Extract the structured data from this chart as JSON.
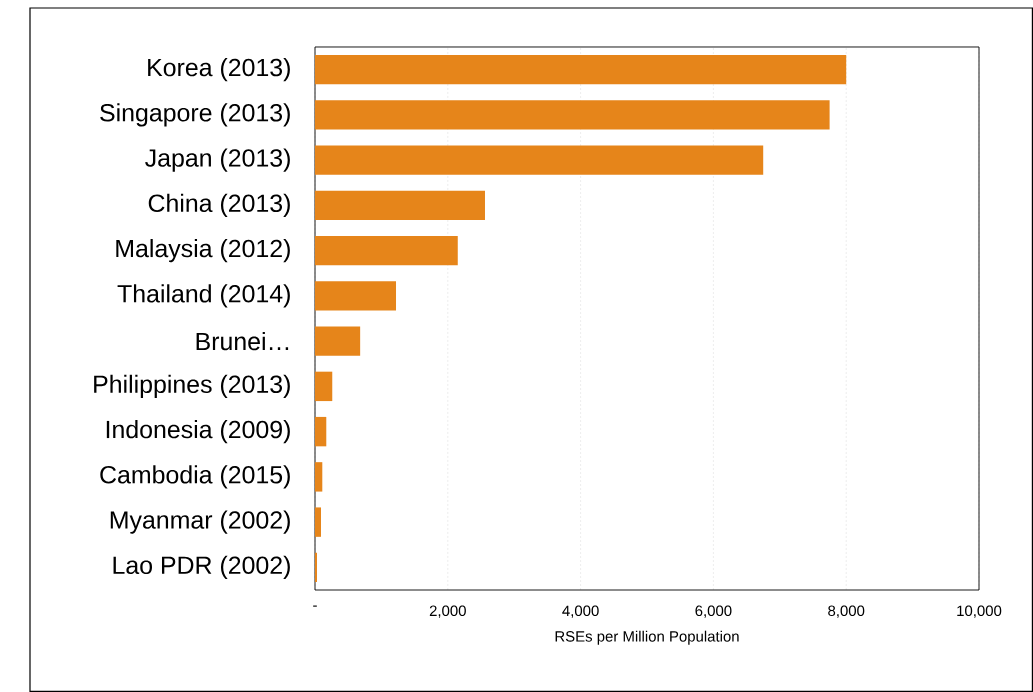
{
  "chart_data": {
    "type": "bar",
    "orientation": "horizontal",
    "xlabel": "RSEs per Million Population",
    "categories": [
      "Korea (2013)",
      "Singapore (2013)",
      "Japan (2013)",
      "China (2013)",
      "Malaysia (2012)",
      "Thailand (2014)",
      "Brunei…",
      "Philippines (2013)",
      "Indonesia (2009)",
      "Cambodia (2015)",
      "Myanmar (2002)",
      "Lao PDR (2002)"
    ],
    "values": [
      8000,
      7750,
      6750,
      2560,
      2150,
      1220,
      680,
      260,
      170,
      110,
      90,
      30
    ],
    "color": "#e6851a",
    "xlim": [
      0,
      10000
    ],
    "xticks": [
      {
        "value": 0,
        "label": "-"
      },
      {
        "value": 2000,
        "label": "2,000"
      },
      {
        "value": 4000,
        "label": "4,000"
      },
      {
        "value": 6000,
        "label": "6,000"
      },
      {
        "value": 8000,
        "label": "8,000"
      },
      {
        "value": 10000,
        "label": "10,000"
      }
    ],
    "grid": "x"
  }
}
